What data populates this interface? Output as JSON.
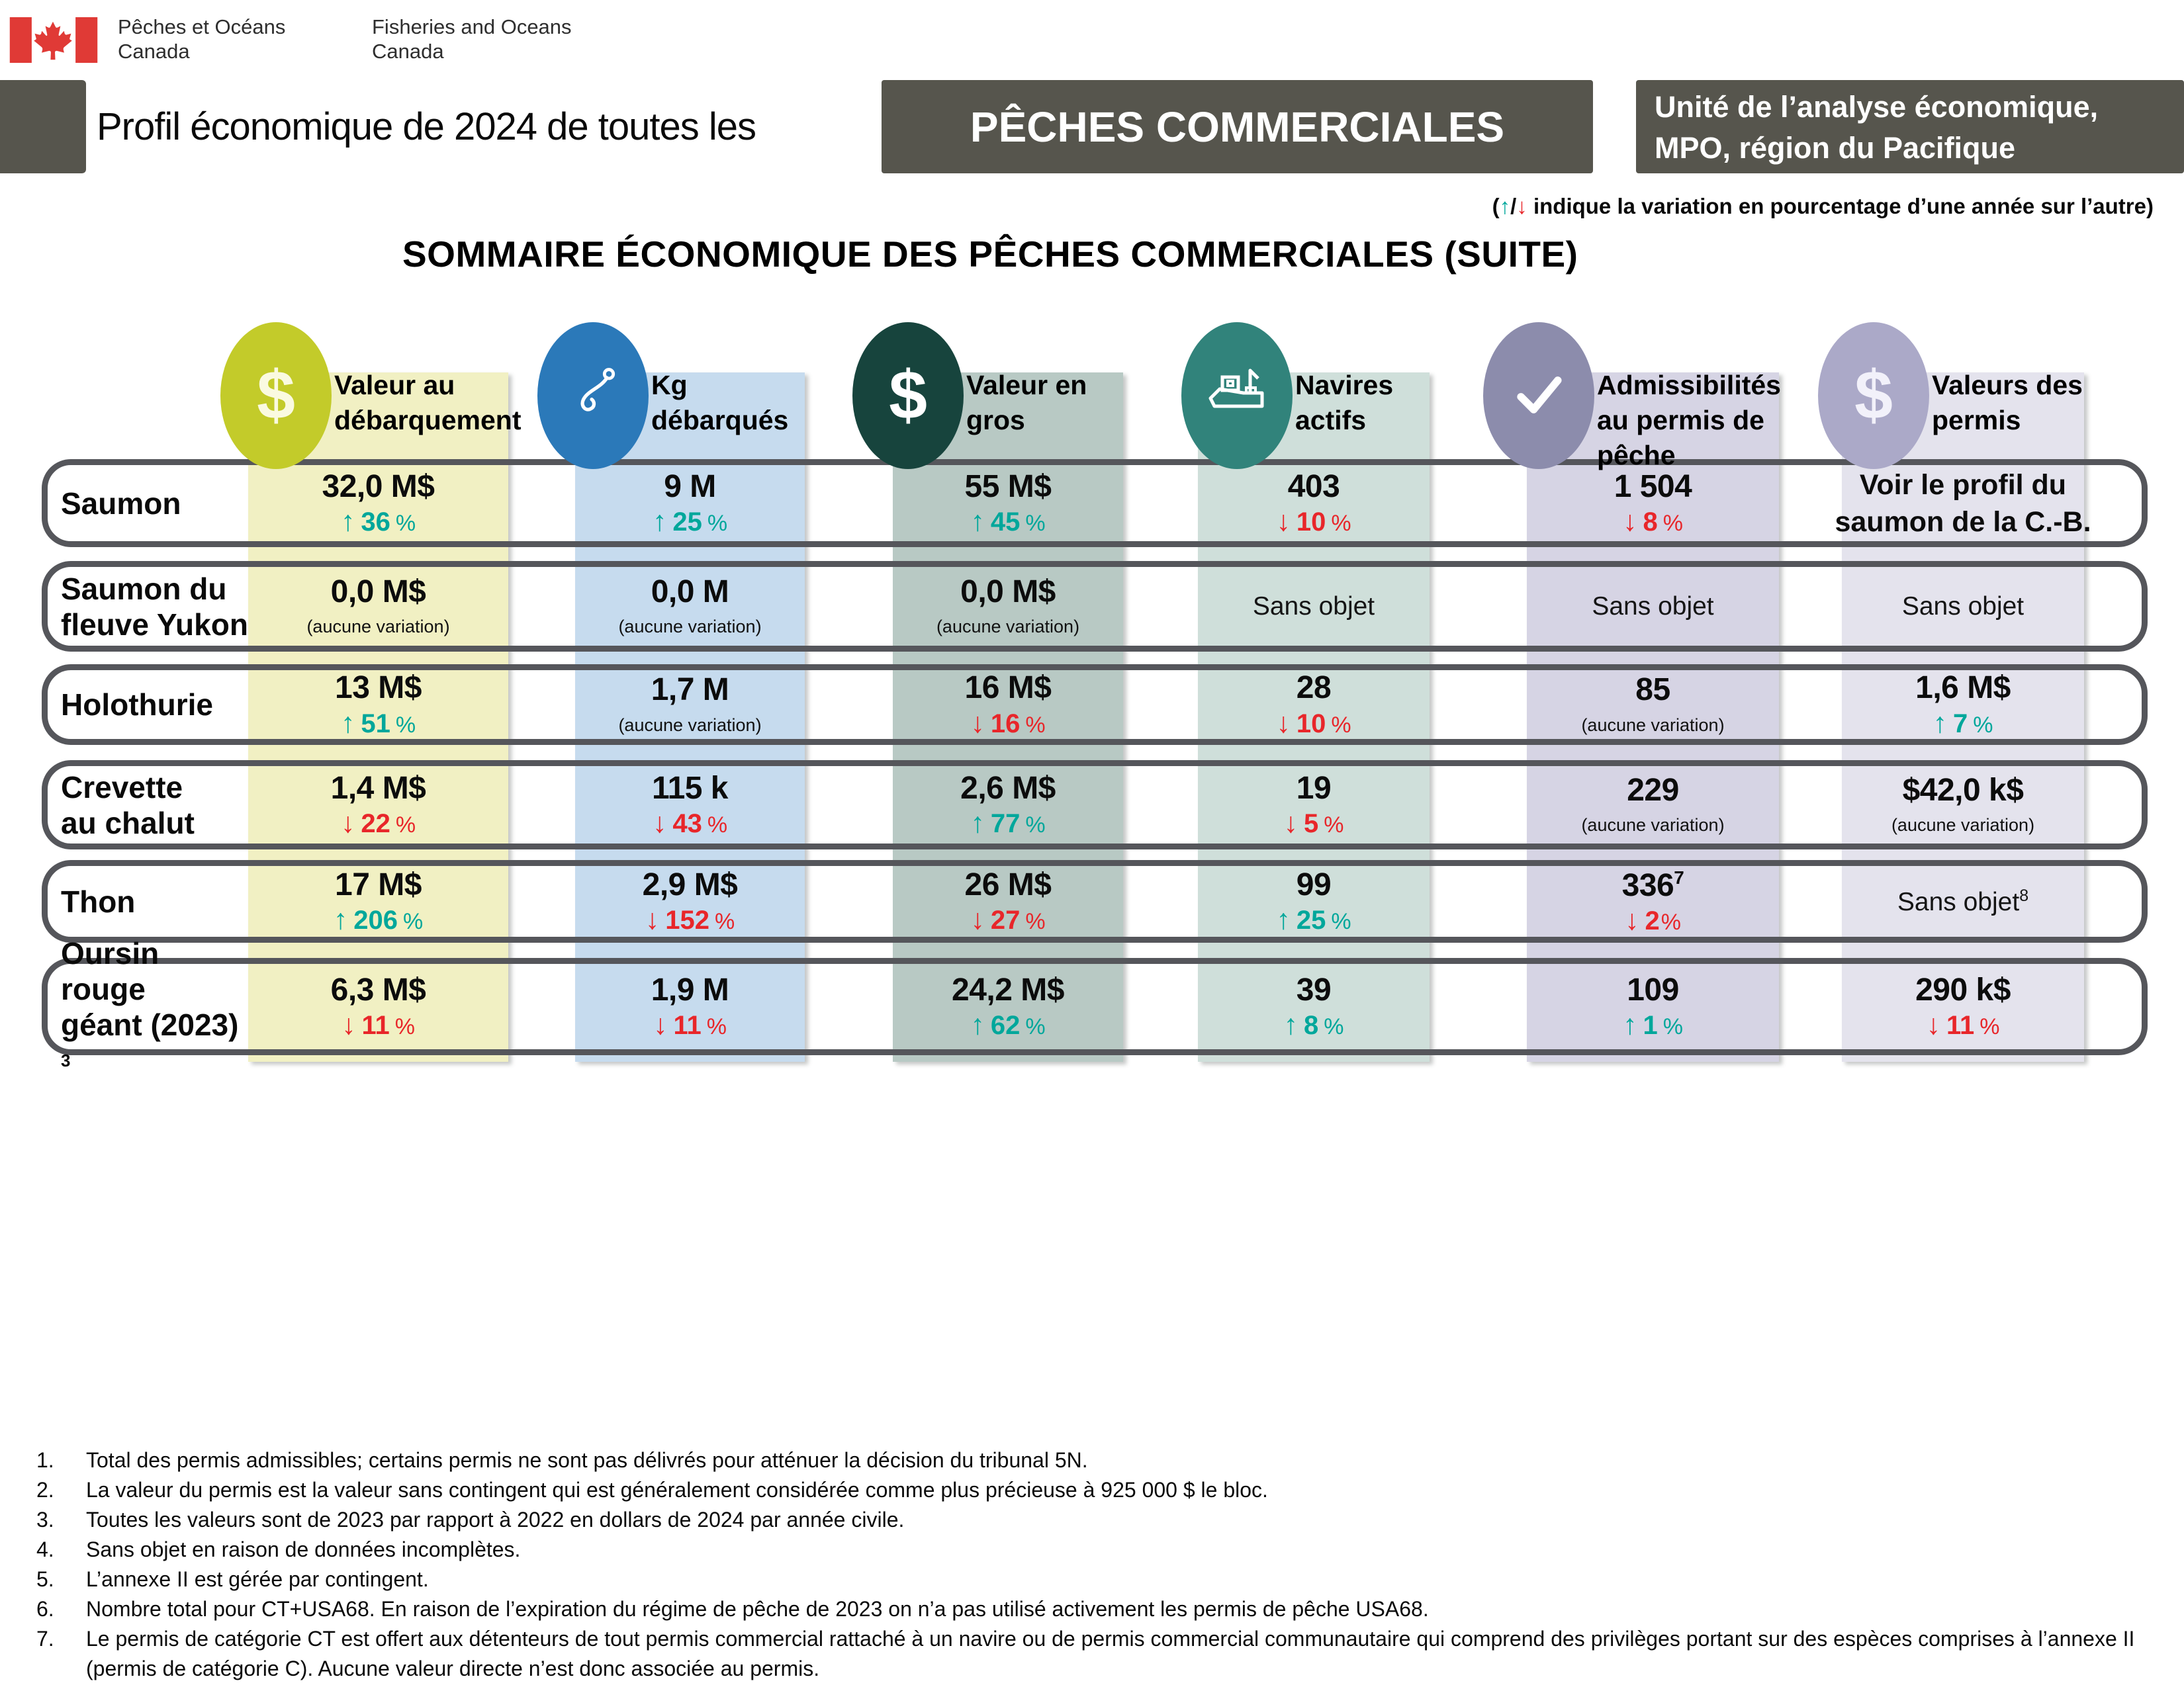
{
  "colors": {
    "teal_change": "#00a79b",
    "red_change": "#e8262a",
    "dark_box": "#56554d",
    "flag_red": "#e03a36",
    "row_border": "#55565b"
  },
  "header": {
    "wordmark_fr": [
      "Pêches et Océans",
      "Canada"
    ],
    "wordmark_en": [
      "Fisheries and Oceans",
      "Canada"
    ]
  },
  "titlebar": {
    "prefix": "Profil économique de 2024 de toutes les",
    "highlight": "PÊCHES COMMERCIALES",
    "unit_line1": "Unité de l’analyse économique,",
    "unit_line2": "MPO, région du Pacifique"
  },
  "legend": {
    "open": "(",
    "up": "↑",
    "slash": "/",
    "down": "↓",
    "text": " indique la variation en pourcentage d’une année sur l’autre)"
  },
  "section_title": "SOMMAIRE ÉCONOMIQUE DES PÊCHES COMMERCIALES (SUITE)",
  "columns": [
    {
      "id": "landed-value",
      "label": [
        "Valeur au",
        "débarquement"
      ],
      "icon": "dollar-icon",
      "circle_color": "#c3cb2a",
      "icon_color": "#fafae0",
      "band_color": "#f1f0c3"
    },
    {
      "id": "kg-landed",
      "label": [
        "Kg",
        "débarqués"
      ],
      "icon": "fishhook-icon",
      "circle_color": "#2b79b9",
      "icon_color": "#ffffff",
      "band_color": "#c6dbee"
    },
    {
      "id": "wholesale-value",
      "label": [
        "Valeur en",
        "gros"
      ],
      "icon": "dollar-icon",
      "circle_color": "#17443d",
      "icon_color": "#ffffff",
      "band_color": "#b8c9c4"
    },
    {
      "id": "active-vessels",
      "label": [
        "Navires",
        "actifs"
      ],
      "icon": "ship-icon",
      "circle_color": "#31837b",
      "icon_color": "#ffffff",
      "band_color": "#cfdfda"
    },
    {
      "id": "licence-eligibilities",
      "label": [
        "Admissibilités",
        "au permis de",
        "pêche"
      ],
      "icon": "checkmark-icon",
      "circle_color": "#8c8cac",
      "icon_color": "#ffffff",
      "band_color": "#d6d4e4"
    },
    {
      "id": "licence-values",
      "label": [
        "Valeurs des",
        "permis"
      ],
      "icon": "dollar-icon",
      "circle_color": "#aba9c8",
      "icon_color": "#f2f1fa",
      "band_color": "#e4e3ed"
    }
  ],
  "rows": [
    {
      "id": "saumon",
      "label": [
        "Saumon"
      ],
      "cells": [
        {
          "value": "32,0 M$",
          "dir": "up",
          "pct": "36 %"
        },
        {
          "value": "9 M",
          "dir": "up",
          "pct": "25 %"
        },
        {
          "value": "55 M$",
          "dir": "up",
          "pct": "45 %"
        },
        {
          "value": "403",
          "dir": "down",
          "pct": "10 %"
        },
        {
          "value": "1 504",
          "dir": "down",
          "pct": "8 %"
        },
        {
          "bigtext": "Voir le profil du saumon de la C.-B."
        }
      ]
    },
    {
      "id": "saumon-yukon",
      "label": [
        "Saumon du",
        "fleuve Yukon"
      ],
      "cells": [
        {
          "value": "0,0 M$",
          "note": "(aucune variation)"
        },
        {
          "value": "0,0 M",
          "note": "(aucune variation)"
        },
        {
          "value": "0,0 M$",
          "note": "(aucune variation)"
        },
        {
          "text": "Sans objet"
        },
        {
          "text": "Sans objet"
        },
        {
          "text": "Sans objet"
        }
      ]
    },
    {
      "id": "holothurie",
      "label": [
        "Holothurie"
      ],
      "cells": [
        {
          "value": "13 M$",
          "dir": "up",
          "pct": "51 %"
        },
        {
          "value": "1,7 M",
          "note": "(aucune variation)"
        },
        {
          "value": "16 M$",
          "dir": "down",
          "pct": "16 %"
        },
        {
          "value": "28",
          "dir": "down",
          "pct": "10 %"
        },
        {
          "value": "85",
          "note": "(aucune variation)"
        },
        {
          "value": "1,6 M$",
          "dir": "up",
          "pct": "7 %"
        }
      ]
    },
    {
      "id": "crevette",
      "label": [
        "Crevette",
        "au chalut"
      ],
      "cells": [
        {
          "value": "1,4 M$",
          "dir": "down",
          "pct": "22 %"
        },
        {
          "value": "115 k",
          "dir": "down",
          "pct": "43 %"
        },
        {
          "value": "2,6 M$",
          "dir": "up",
          "pct": "77 %"
        },
        {
          "value": "19",
          "dir": "down",
          "pct": "5 %"
        },
        {
          "value": "229",
          "note": "(aucune variation)"
        },
        {
          "value": "$42,0 k$",
          "note": "(aucune variation)"
        }
      ]
    },
    {
      "id": "thon",
      "label": [
        "Thon"
      ],
      "cells": [
        {
          "value": "17 M$",
          "dir": "up",
          "pct": "206 %"
        },
        {
          "value": "2,9 M$",
          "dir": "down",
          "pct": "152 %"
        },
        {
          "value": "26 M$",
          "dir": "down",
          "pct": "27 %"
        },
        {
          "value": "99",
          "dir": "up",
          "pct": "25 %"
        },
        {
          "value": "336",
          "valsup": "7",
          "dir": "down",
          "pct": "2%"
        },
        {
          "text": "Sans objet",
          "textsup": "8"
        }
      ]
    },
    {
      "id": "oursin",
      "label": [
        "Oursin rouge",
        "géant (2023)"
      ],
      "labelsup": "3",
      "cells": [
        {
          "value": "6,3 M$",
          "dir": "down",
          "pct": "11 %"
        },
        {
          "value": "1,9 M",
          "dir": "down",
          "pct": "11 %"
        },
        {
          "value": "24,2 M$",
          "dir": "up",
          "pct": "62 %"
        },
        {
          "value": "39",
          "dir": "up",
          "pct": "8 %"
        },
        {
          "value": "109",
          "dir": "up",
          "pct": "1 %"
        },
        {
          "value": "290 k$",
          "dir": "down",
          "pct": "11 %"
        }
      ]
    }
  ],
  "footnotes": [
    {
      "num": "1.",
      "text": "Total des permis admissibles; certains permis ne sont pas délivrés pour atténuer la décision du tribunal 5N."
    },
    {
      "num": "2.",
      "text": "La valeur du permis est la valeur sans contingent qui est généralement considérée comme plus précieuse à 925 000 $ le bloc."
    },
    {
      "num": "3.",
      "text": "Toutes les valeurs sont de 2023 par rapport à 2022 en dollars de 2024 par année civile."
    },
    {
      "num": "4.",
      "text": "Sans objet en raison de données incomplètes."
    },
    {
      "num": "5.",
      "text": "L’annexe II est gérée par contingent."
    },
    {
      "num": "6.",
      "text": "Nombre total pour CT+USA68. En raison de l’expiration du régime de pêche de 2023 on n’a pas utilisé activement les permis de pêche USA68."
    },
    {
      "num": "7.",
      "text": "Le permis de catégorie CT est offert aux détenteurs de tout permis commercial rattaché à un navire ou de permis commercial communautaire qui comprend des privilèges portant sur des espèces comprises à l’annexe II (permis de catégorie C). Aucune valeur directe n’est donc associée au permis."
    }
  ]
}
